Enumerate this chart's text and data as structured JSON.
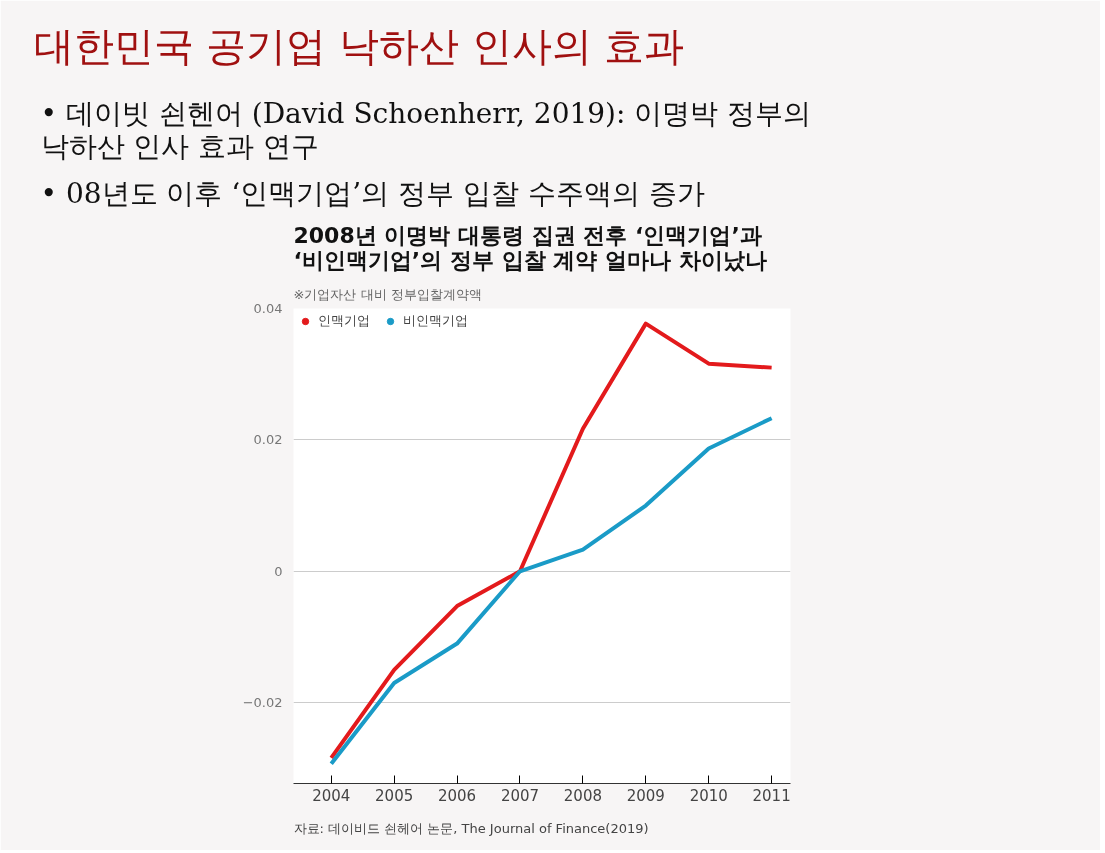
{
  "chart_data": {
    "type": "line",
    "title": "대한민국 공기업 낙하산 인사의 효과",
    "annotations": [
      "•\t데이빗 쇤헨어 (David Schoenherr, 2019): 이명박 정부의\n낙하산 인사 효과 연구",
      "•\t08년도 이후 ‘인맥기업’의 정부 입찰 수주액의 증가",
      "2008년 이명박 대통령 집권 전후 ‘인맥기업’과\n‘비인맥기업’의 정부 입찰 계약 얼마나 차이났나",
      "※기업자산 대비 정부입찰계약액",
      "자료: 데이비드 쇤헤어 논문, The Journal of Finance(2019)"
    ],
    "x": [
      2004,
      2005,
      2006,
      2007,
      2008,
      2009,
      2010,
      2011
    ],
    "series": [
      {
        "name": "인맥기업",
        "color": "#e31a1c",
        "values": [
          -0.0284,
          -0.015,
          -0.0053,
          0,
          0.0217,
          0.0377,
          0.0316,
          0.031
        ]
      },
      {
        "name": "비인맥기업",
        "color": "#1a9bc7",
        "values": [
          -0.0293,
          -0.017,
          -0.011,
          0,
          0.0033,
          0.01,
          0.0187,
          0.0233
        ]
      }
    ],
    "xlim": [
      2003.4,
      2011.3
    ],
    "xticks": [
      2004,
      2005,
      2006,
      2007,
      2008,
      2009,
      2010,
      2011
    ],
    "ylim": [
      -0.0323,
      0.04
    ],
    "yticks": [
      -0.02,
      0,
      0.02,
      0.04
    ],
    "grid": "y",
    "legend": "top left",
    "marker": "none",
    "line_style": "solid"
  }
}
